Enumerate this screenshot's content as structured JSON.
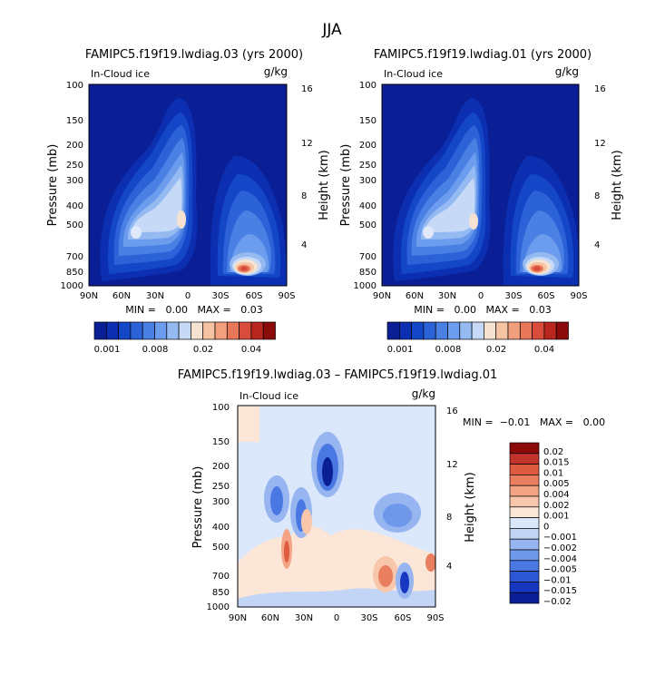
{
  "page_title": "JJA",
  "colors": {
    "seq": [
      "#0a1f96",
      "#0b2fb0",
      "#1347c8",
      "#2b62d8",
      "#4a80e3",
      "#6c9ced",
      "#95baf2",
      "#c6daf7",
      "#f6e2d0",
      "#f6c3a3",
      "#f19f7c",
      "#e8775a",
      "#d94b3b",
      "#b8261f",
      "#8b0a0a"
    ],
    "div": [
      "#0a1f96",
      "#1638c0",
      "#2c58d5",
      "#4a78e2",
      "#6e98ea",
      "#97b5f0",
      "#c2d5f6",
      "#dbe7fb",
      "#fbe6d8",
      "#f8c7ab",
      "#f3a484",
      "#ea7f60",
      "#de5a41",
      "#c2342b",
      "#8b0a0a"
    ]
  },
  "chart_data": [
    {
      "type": "contour",
      "panel": "top-left",
      "title": "FAMIPC5.f19f19.lwdiag.03 (yrs 2000)",
      "field_label": "In-Cloud ice",
      "units": "g/kg",
      "ylabel": "Pressure (mb)",
      "ylabel_right": "Height (km)",
      "x_ticks": [
        "90N",
        "60N",
        "30N",
        "0",
        "30S",
        "60S",
        "90S"
      ],
      "y_ticks": [
        "100",
        "150",
        "200",
        "250",
        "300",
        "400",
        "500",
        "700",
        "850",
        "1000"
      ],
      "y_ticks_right": [
        "16",
        "12",
        "8",
        "4"
      ],
      "stats": "MIN =   0.00   MAX =   0.03",
      "colorbar_labels": [
        "0.001",
        "0.008",
        "0.02",
        "0.04"
      ]
    },
    {
      "type": "contour",
      "panel": "top-right",
      "title": "FAMIPC5.f19f19.lwdiag.01 (yrs 2000)",
      "field_label": "In-Cloud ice",
      "units": "g/kg",
      "ylabel": "Pressure (mb)",
      "ylabel_right": "Height (km)",
      "x_ticks": [
        "90N",
        "60N",
        "30N",
        "0",
        "30S",
        "60S",
        "90S"
      ],
      "y_ticks": [
        "100",
        "150",
        "200",
        "250",
        "300",
        "400",
        "500",
        "700",
        "850",
        "1000"
      ],
      "y_ticks_right": [
        "16",
        "12",
        "8",
        "4"
      ],
      "stats": "MIN =   0.00   MAX =   0.03",
      "colorbar_labels": [
        "0.001",
        "0.008",
        "0.02",
        "0.04"
      ]
    },
    {
      "type": "contour",
      "panel": "bottom-difference",
      "title": "FAMIPC5.f19f19.lwdiag.03 – FAMIPC5.f19f19.lwdiag.01",
      "field_label": "In-Cloud ice",
      "units": "g/kg",
      "ylabel": "Pressure (mb)",
      "ylabel_right": "Height (km)",
      "x_ticks": [
        "90N",
        "60N",
        "30N",
        "0",
        "30S",
        "60S",
        "90S"
      ],
      "y_ticks": [
        "100",
        "150",
        "200",
        "250",
        "300",
        "400",
        "500",
        "700",
        "850",
        "1000"
      ],
      "y_ticks_right": [
        "16",
        "12",
        "8",
        "4"
      ],
      "stats": "MIN =  −0.01   MAX =   0.00",
      "colorbar_labels": [
        "0.02",
        "0.015",
        "0.01",
        "0.005",
        "0.004",
        "0.002",
        "0.001",
        "0",
        "−0.001",
        "−0.002",
        "−0.004",
        "−0.005",
        "−0.01",
        "−0.015",
        "−0.02"
      ]
    }
  ]
}
